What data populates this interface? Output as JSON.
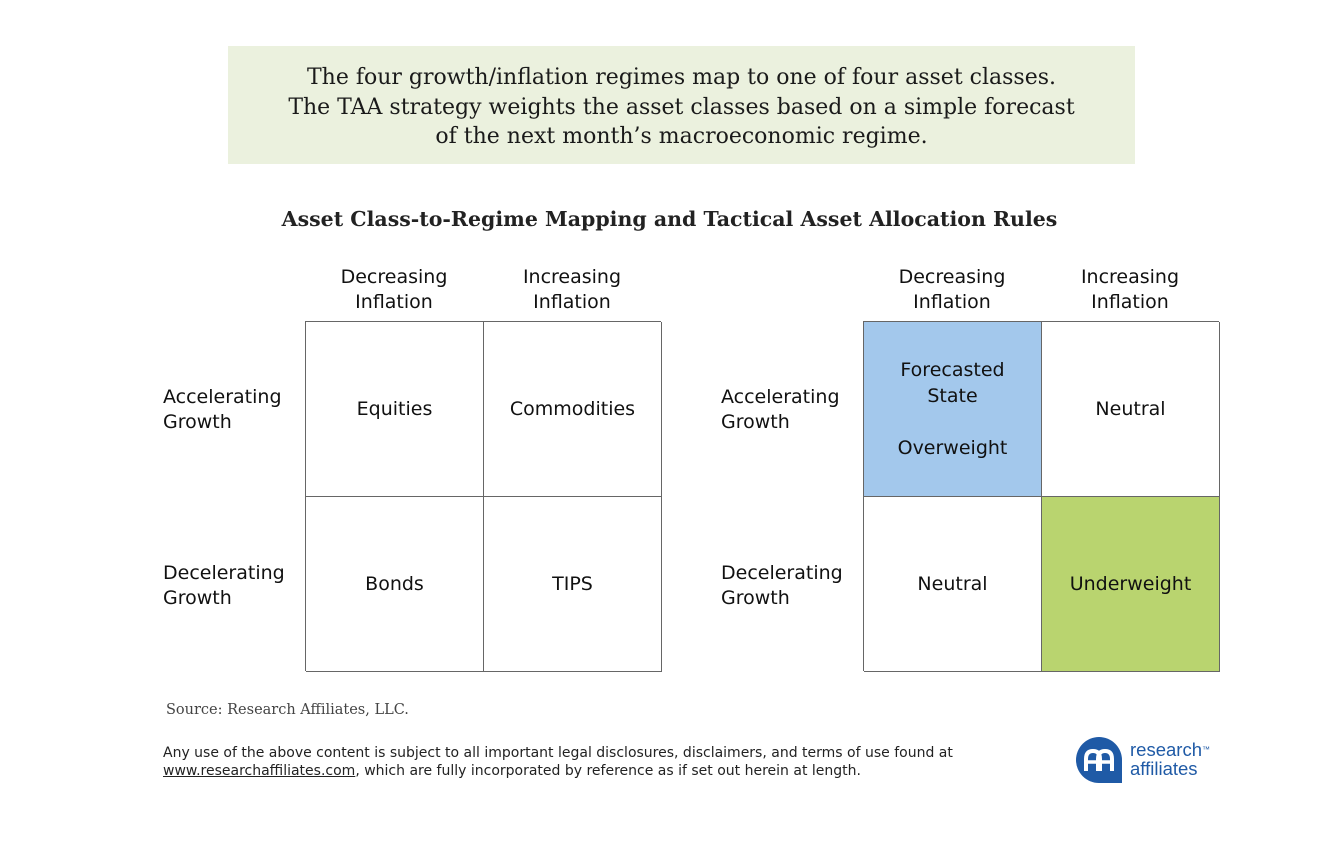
{
  "banner": {
    "lines": [
      "The four growth/inflation regimes map to one of four asset classes.",
      "The TAA strategy weights the asset classes based on a simple forecast",
      "of the next month’s macroeconomic regime."
    ]
  },
  "title": "Asset Class-to-Regime Mapping and Tactical Asset Allocation Rules",
  "columns": {
    "decreasing": [
      "Decreasing",
      "Inflation"
    ],
    "increasing": [
      "Increasing",
      "Inflation"
    ]
  },
  "rows": {
    "accelerating": [
      "Accelerating",
      "Growth"
    ],
    "decelerating": [
      "Decelerating",
      "Growth"
    ]
  },
  "mapping_grid": {
    "accel_decr": "Equities",
    "accel_incr": "Commodities",
    "decel_decr": "Bonds",
    "decel_incr": "TIPS"
  },
  "allocation_grid": {
    "accel_decr": [
      "Forecasted",
      "State",
      "Overweight"
    ],
    "accel_incr": "Neutral",
    "decel_decr": "Neutral",
    "decel_incr": "Underweight"
  },
  "colors": {
    "banner_bg": "#ebf1de",
    "forecasted_bg": "#a3c8ec",
    "underweight_bg": "#b9d46f",
    "logo_blue": "#1f5aa6"
  },
  "source": "Source: Research Affiliates, LLC.",
  "disclaimer": {
    "line1": "Any use of the above content is subject to all important legal disclosures, disclaimers, and terms of use found at",
    "link": "www.researchaffiliates.com",
    "line2_rest": ", which are fully incorporated by reference as if set out herein at length."
  },
  "logo": {
    "icon": "research-affiliates-logo-icon",
    "word1": "research",
    "tm": "™",
    "word2": "affiliates"
  }
}
